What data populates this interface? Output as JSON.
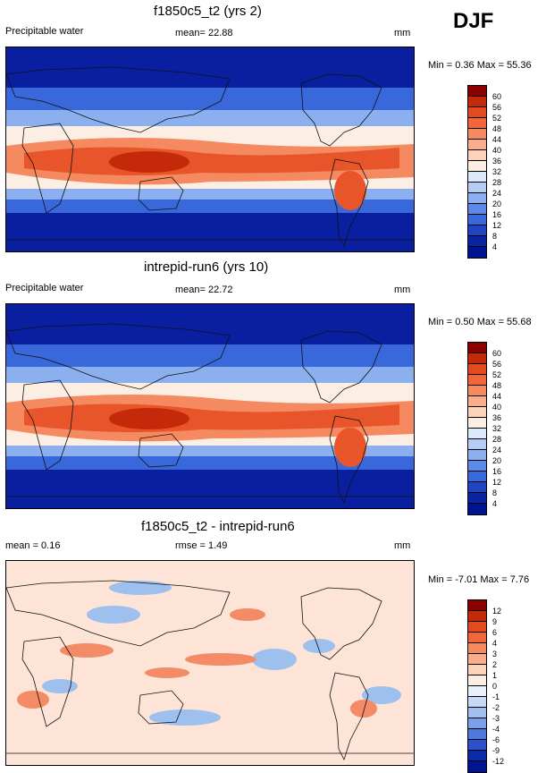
{
  "season": "DJF",
  "panels": [
    {
      "title": "f1850c5_t2 (yrs 2)",
      "variable": "Precipitable water",
      "mean_text": "mean=  22.88",
      "units": "mm",
      "minmax_text": "Min =   0.36 Max =  55.36",
      "colorbar": {
        "labels": [
          "60",
          "56",
          "52",
          "48",
          "44",
          "40",
          "36",
          "32",
          "28",
          "24",
          "20",
          "16",
          "12",
          "8",
          "4"
        ],
        "colors": [
          "#8b0000",
          "#c42a0a",
          "#e34a20",
          "#f0663a",
          "#f58a60",
          "#f9ad8a",
          "#fcd2b8",
          "#fdeee4",
          "#dde8fa",
          "#b5cdf5",
          "#8cb0ef",
          "#5d8ae6",
          "#3868d9",
          "#1f44c4",
          "#0b24a3",
          "#001490"
        ]
      }
    },
    {
      "title": "intrepid-run6 (yrs 10)",
      "variable": "Precipitable water",
      "mean_text": "mean=  22.72",
      "units": "mm",
      "minmax_text": "Min =   0.50 Max =  55.68",
      "colorbar": {
        "labels": [
          "60",
          "56",
          "52",
          "48",
          "44",
          "40",
          "36",
          "32",
          "28",
          "24",
          "20",
          "16",
          "12",
          "8",
          "4"
        ],
        "colors": [
          "#8b0000",
          "#c42a0a",
          "#e34a20",
          "#f0663a",
          "#f58a60",
          "#f9ad8a",
          "#fcd2b8",
          "#fdeee4",
          "#dde8fa",
          "#b5cdf5",
          "#8cb0ef",
          "#5d8ae6",
          "#3868d9",
          "#1f44c4",
          "#0b24a3",
          "#001490"
        ]
      }
    },
    {
      "title": "f1850c5_t2 - intrepid-run6",
      "mean_text": "mean =   0.16",
      "rmse_text": "rmse =   1.49",
      "units": "mm",
      "minmax_text": "Min =  -7.01 Max =   7.76",
      "colorbar": {
        "labels": [
          "12",
          "9",
          "6",
          "4",
          "3",
          "2",
          "1",
          "0",
          "-1",
          "-2",
          "-3",
          "-4",
          "-6",
          "-9",
          "-12"
        ],
        "colors": [
          "#8b0000",
          "#c42a0a",
          "#e34a20",
          "#f0663a",
          "#f58a60",
          "#f9ad8a",
          "#fcd2b8",
          "#fdeee4",
          "#e9f0fb",
          "#c7d9f6",
          "#a3bff0",
          "#7b9fe8",
          "#5179dc",
          "#2b52c8",
          "#0b2ba8",
          "#001490"
        ]
      }
    }
  ],
  "map_colors": {
    "deep_blue": "#0a1fa0",
    "mid_blue": "#3868d9",
    "light_blue": "#8cb0ef",
    "pale": "#fdeee4",
    "salmon": "#f58a60",
    "orange": "#e8552a",
    "red": "#c42a0a",
    "diff_bg": "#fde4d6",
    "diff_blue": "#9ec0ef",
    "diff_red": "#f28b66",
    "coast": "#111111"
  }
}
